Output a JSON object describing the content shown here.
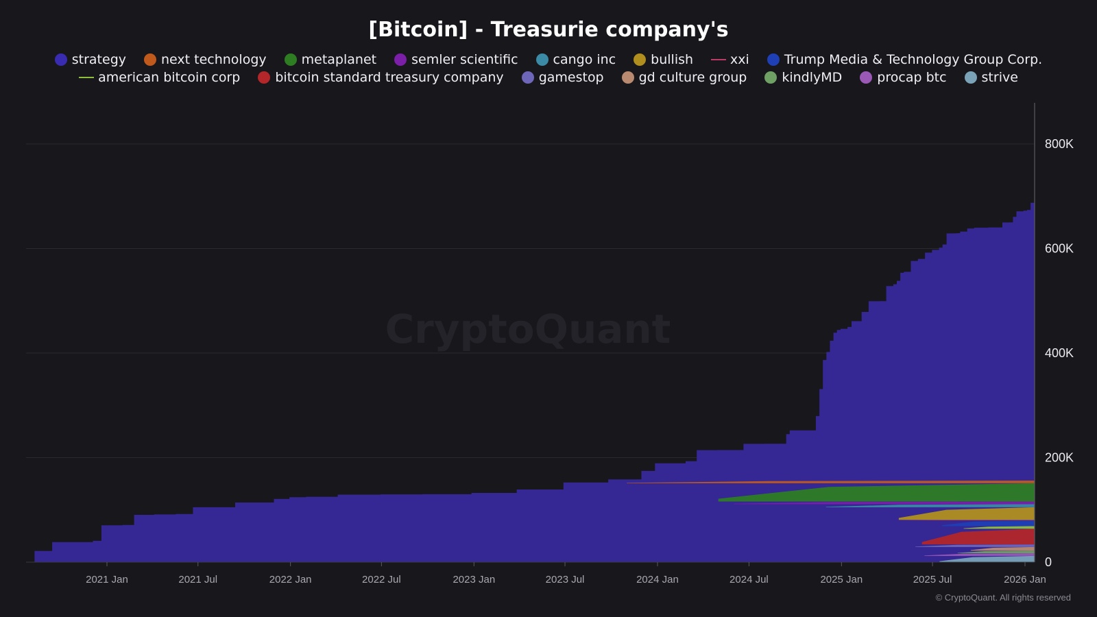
{
  "chart_data": {
    "type": "area",
    "stacked": true,
    "title": "[Bitcoin] - Treasurie company's",
    "watermark": "CryptoQuant",
    "copyright": "© CryptoQuant. All rights reserved",
    "xlabel": "",
    "ylabel": "",
    "ylim": [
      0,
      880000
    ],
    "yticks": [
      0,
      200000,
      400000,
      600000,
      800000
    ],
    "ytick_labels": [
      "0",
      "200K",
      "400K",
      "600K",
      "800K"
    ],
    "xlim": [
      "2020-08-01",
      "2026-01-20"
    ],
    "xticks": [
      "2021-01-01",
      "2021-07-01",
      "2022-01-01",
      "2022-07-01",
      "2023-01-01",
      "2023-07-01",
      "2024-01-01",
      "2024-07-01",
      "2025-01-01",
      "2025-07-01",
      "2026-01-01"
    ],
    "xtick_labels": [
      "2021 Jan",
      "2021 Jul",
      "2022 Jan",
      "2022 Jul",
      "2023 Jan",
      "2023 Jul",
      "2024 Jan",
      "2024 Jul",
      "2025 Jan",
      "2025 Jul",
      "2026 Jan"
    ],
    "grid": true,
    "legend_position": "top",
    "legend_rows": [
      [
        {
          "name": "strategy",
          "color": "#3a2cb0",
          "marker": "dot"
        },
        {
          "name": "next technology",
          "color": "#c05a1c",
          "marker": "dot"
        },
        {
          "name": "metaplanet",
          "color": "#2e7d23",
          "marker": "dot"
        },
        {
          "name": "semler scientific",
          "color": "#7c1fa8",
          "marker": "dot"
        },
        {
          "name": "cango inc",
          "color": "#3b8aa6",
          "marker": "dot"
        },
        {
          "name": "bullish",
          "color": "#b08f1e",
          "marker": "dot"
        },
        {
          "name": "xxi",
          "color": "#c03a66",
          "marker": "line"
        },
        {
          "name": "Trump Media & Technology Group Corp.",
          "color": "#1f3fb5",
          "marker": "dot"
        }
      ],
      [
        {
          "name": "american bitcoin corp",
          "color": "#8fbf3a",
          "marker": "line"
        },
        {
          "name": "bitcoin standard treasury company",
          "color": "#b3262a",
          "marker": "dot"
        },
        {
          "name": "gamestop",
          "color": "#6e66b8",
          "marker": "dot"
        },
        {
          "name": "gd culture group",
          "color": "#b98a70",
          "marker": "dot"
        },
        {
          "name": "kindlyMD",
          "color": "#6fa064",
          "marker": "dot"
        },
        {
          "name": "procap btc",
          "color": "#9b59b6",
          "marker": "dot"
        },
        {
          "name": "strive",
          "color": "#7aa3b8",
          "marker": "dot"
        }
      ]
    ],
    "strategy_series": {
      "name": "strategy",
      "color": "#352794",
      "points": [
        [
          "2020-08-10",
          21454
        ],
        [
          "2020-09-14",
          38250
        ],
        [
          "2020-12-04",
          40824
        ],
        [
          "2020-12-21",
          70470
        ],
        [
          "2021-02-01",
          71079
        ],
        [
          "2021-02-24",
          90531
        ],
        [
          "2021-04-05",
          91326
        ],
        [
          "2021-05-18",
          92079
        ],
        [
          "2021-06-21",
          105085
        ],
        [
          "2021-09-13",
          114042
        ],
        [
          "2021-09-30",
          114042
        ],
        [
          "2021-11-29",
          121044
        ],
        [
          "2021-12-30",
          124391
        ],
        [
          "2022-02-01",
          125051
        ],
        [
          "2022-04-05",
          129218
        ],
        [
          "2022-06-29",
          129699
        ],
        [
          "2022-09-20",
          130000
        ],
        [
          "2022-12-27",
          132500
        ],
        [
          "2023-03-27",
          138955
        ],
        [
          "2023-06-28",
          152333
        ],
        [
          "2023-09-25",
          158245
        ],
        [
          "2023-11-30",
          174530
        ],
        [
          "2023-12-27",
          189150
        ],
        [
          "2024-02-26",
          193000
        ],
        [
          "2024-03-19",
          214246
        ],
        [
          "2024-04-29",
          214400
        ],
        [
          "2024-06-20",
          226331
        ],
        [
          "2024-08-01",
          226500
        ],
        [
          "2024-09-13",
          244800
        ],
        [
          "2024-09-20",
          252220
        ],
        [
          "2024-11-11",
          279420
        ],
        [
          "2024-11-18",
          331200
        ],
        [
          "2024-11-25",
          386700
        ],
        [
          "2024-12-02",
          402100
        ],
        [
          "2024-12-09",
          423650
        ],
        [
          "2024-12-16",
          439000
        ],
        [
          "2024-12-23",
          444262
        ],
        [
          "2024-12-30",
          446400
        ],
        [
          "2025-01-13",
          450000
        ],
        [
          "2025-01-21",
          461000
        ],
        [
          "2025-02-10",
          478740
        ],
        [
          "2025-02-24",
          499096
        ],
        [
          "2025-03-17",
          499226
        ],
        [
          "2025-03-31",
          528185
        ],
        [
          "2025-04-14",
          531644
        ],
        [
          "2025-04-21",
          538200
        ],
        [
          "2025-04-28",
          553555
        ],
        [
          "2025-05-05",
          555450
        ],
        [
          "2025-05-19",
          576230
        ],
        [
          "2025-06-02",
          580250
        ],
        [
          "2025-06-16",
          592100
        ],
        [
          "2025-06-30",
          597325
        ],
        [
          "2025-07-14",
          601550
        ],
        [
          "2025-07-21",
          607770
        ],
        [
          "2025-07-29",
          628791
        ],
        [
          "2025-08-11",
          628946
        ],
        [
          "2025-08-18",
          629376
        ],
        [
          "2025-08-25",
          632457
        ],
        [
          "2025-09-08",
          638460
        ],
        [
          "2025-09-22",
          639835
        ],
        [
          "2025-10-20",
          640418
        ],
        [
          "2025-11-17",
          649870
        ],
        [
          "2025-12-01",
          650000
        ],
        [
          "2025-12-08",
          660624
        ],
        [
          "2025-12-15",
          671268
        ],
        [
          "2025-12-29",
          672497
        ],
        [
          "2026-01-05",
          673783
        ],
        [
          "2026-01-12",
          687410
        ],
        [
          "2026-01-20",
          709715
        ]
      ]
    },
    "other_series_note": "small companies stacked above strategy, all under ~150K total",
    "others_series": [
      {
        "name": "next technology",
        "color": "#c05a1c",
        "values_k": [
          0,
          0,
          0,
          0,
          0,
          0,
          0,
          0,
          0,
          0,
          0,
          0,
          0,
          0,
          0,
          0,
          0,
          0,
          0,
          0,
          0,
          0,
          0,
          0,
          0,
          0,
          0,
          0,
          0,
          0,
          0,
          0,
          0,
          0,
          0,
          0,
          5,
          5,
          5,
          5,
          5,
          5,
          5,
          5,
          5,
          5,
          5,
          5,
          5,
          5,
          5
        ]
      },
      {
        "name": "metaplanet",
        "color": "#2e7d23",
        "values_k": [
          0,
          0,
          0,
          0,
          0,
          0,
          0,
          0,
          0,
          0,
          0,
          0,
          0,
          0,
          0,
          0,
          0,
          0,
          0,
          0,
          0,
          0,
          0,
          0,
          0,
          0,
          0,
          0,
          0,
          0,
          0,
          0,
          0,
          0,
          0,
          0,
          2,
          3,
          5,
          7,
          10,
          13,
          17,
          18,
          20,
          20,
          25,
          30,
          30,
          31,
          35
        ]
      }
    ],
    "x_time_index_start": "2020-08-01",
    "x_time_index_step_weeks": 6
  }
}
